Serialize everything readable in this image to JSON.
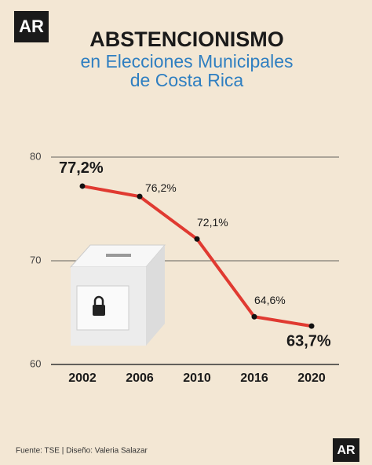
{
  "logo": "AR",
  "chart_data": {
    "type": "line",
    "title": "ABSTENCIONISMO",
    "subtitle": [
      "en Elecciones Municipales",
      "de Costa Rica"
    ],
    "categories": [
      "2002",
      "2006",
      "2010",
      "2016",
      "2020"
    ],
    "values": [
      77.2,
      76.2,
      72.1,
      64.6,
      63.7
    ],
    "value_labels": [
      "77,2%",
      "76,2%",
      "72,1%",
      "64,6%",
      "63,7%"
    ],
    "color": "#e03a31",
    "ylim": [
      60,
      80
    ],
    "yticks": [
      60,
      70,
      80
    ],
    "grid": true,
    "source": "Fuente: TSE | Diseño: Valeria Salazar"
  }
}
